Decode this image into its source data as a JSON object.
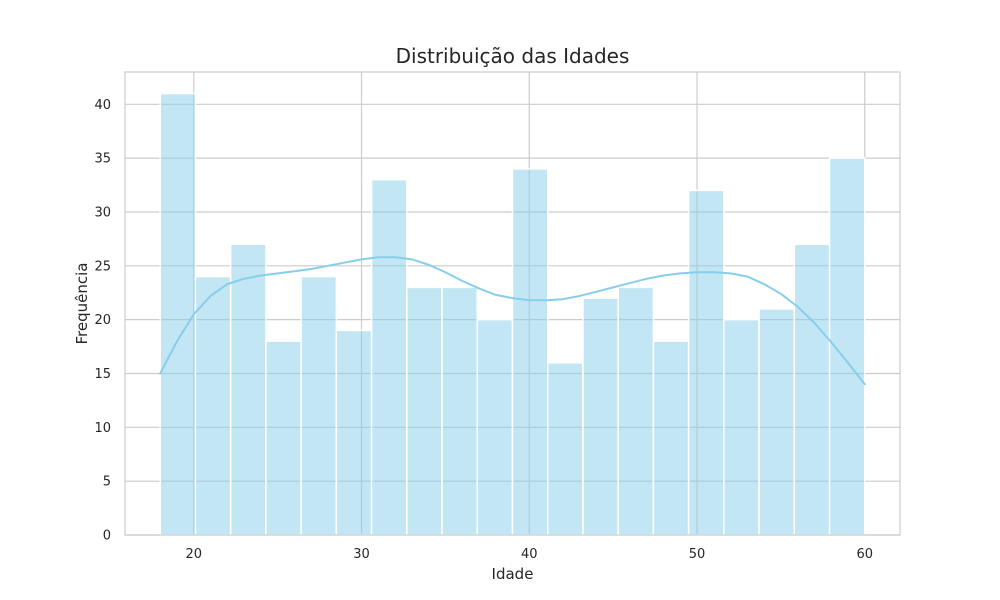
{
  "chart_data": {
    "type": "bar",
    "title": "Distribuição das Idades",
    "xlabel": "Idade",
    "ylabel": "Frequência",
    "xlim": [
      15.9,
      62.1
    ],
    "ylim": [
      0,
      43
    ],
    "xticks": [
      20,
      30,
      40,
      50,
      60
    ],
    "yticks": [
      0,
      5,
      10,
      15,
      20,
      25,
      30,
      35,
      40
    ],
    "grid": true,
    "bins": {
      "start": 18,
      "end": 60,
      "width": 2.1,
      "counts": [
        41,
        24,
        27,
        18,
        24,
        19,
        33,
        23,
        23,
        20,
        34,
        16,
        22,
        23,
        18,
        32,
        20,
        21,
        27,
        35
      ]
    },
    "kde": {
      "x": [
        18,
        19,
        20,
        21,
        22,
        23,
        24,
        25,
        26,
        27,
        28,
        29,
        30,
        31,
        32,
        33,
        34,
        35,
        36,
        37,
        38,
        39,
        40,
        41,
        42,
        43,
        44,
        45,
        46,
        47,
        48,
        49,
        50,
        51,
        52,
        53,
        54,
        55,
        56,
        57,
        58,
        59,
        60
      ],
      "y": [
        15,
        18,
        20.5,
        22.2,
        23.3,
        23.8,
        24.1,
        24.3,
        24.5,
        24.7,
        25,
        25.3,
        25.6,
        25.8,
        25.8,
        25.6,
        25.1,
        24.4,
        23.6,
        22.9,
        22.3,
        22,
        21.8,
        21.8,
        21.9,
        22.2,
        22.6,
        23,
        23.4,
        23.8,
        24.1,
        24.3,
        24.4,
        24.4,
        24.3,
        24,
        23.3,
        22.4,
        21.2,
        19.7,
        17.9,
        16,
        14
      ]
    },
    "colors": {
      "bar_fill": "#87CEEB",
      "bar_edge": "#ffffff",
      "kde_line": "#87CEEB",
      "grid": "#cccccc",
      "axes_edge": "#cccccc"
    }
  }
}
